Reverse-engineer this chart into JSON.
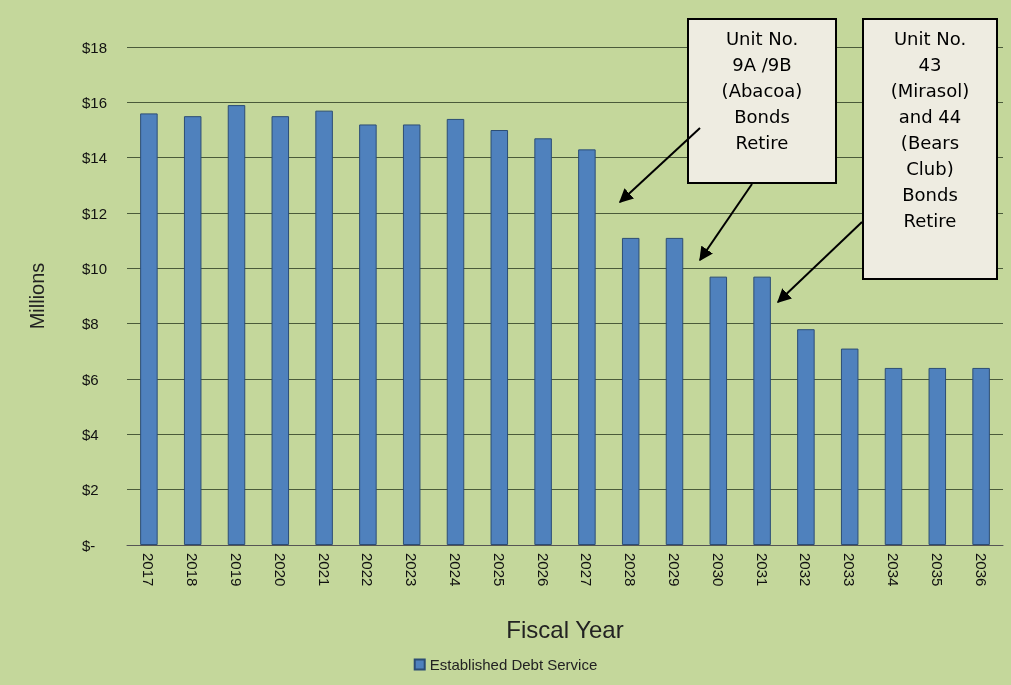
{
  "chart_data": {
    "type": "bar",
    "xlabel": "Fiscal Year",
    "ylabel": "Millions",
    "categories": [
      "2017",
      "2018",
      "2019",
      "2020",
      "2021",
      "2022",
      "2023",
      "2024",
      "2025",
      "2026",
      "2027",
      "2028",
      "2029",
      "2030",
      "2031",
      "2032",
      "2033",
      "2034",
      "2035",
      "2036"
    ],
    "series": [
      {
        "name": "Established Debt Service",
        "color": "#4f81bd",
        "values": [
          15.6,
          15.5,
          15.9,
          15.5,
          15.7,
          15.2,
          15.2,
          15.4,
          15.0,
          14.7,
          14.3,
          11.1,
          11.1,
          9.7,
          9.7,
          7.8,
          7.1,
          6.4,
          6.4,
          6.4
        ]
      }
    ],
    "ylim": [
      0,
      18
    ],
    "yticks": [
      {
        "value": 0,
        "label": "$-"
      },
      {
        "value": 2,
        "label": "$2"
      },
      {
        "value": 4,
        "label": "$4"
      },
      {
        "value": 6,
        "label": "$6"
      },
      {
        "value": 8,
        "label": "$8"
      },
      {
        "value": 10,
        "label": "$10"
      },
      {
        "value": 12,
        "label": "$12"
      },
      {
        "value": 14,
        "label": "$14"
      },
      {
        "value": 16,
        "label": "$16"
      },
      {
        "value": 18,
        "label": "$18"
      }
    ],
    "grid": "y",
    "legend": "bottom",
    "annotations": [
      "Unit No. 9A /9B (Abacoa) Bonds Retire",
      "Unit No. 43 (Mirasol) and 44 (Bears Club) Bonds Retire"
    ]
  }
}
